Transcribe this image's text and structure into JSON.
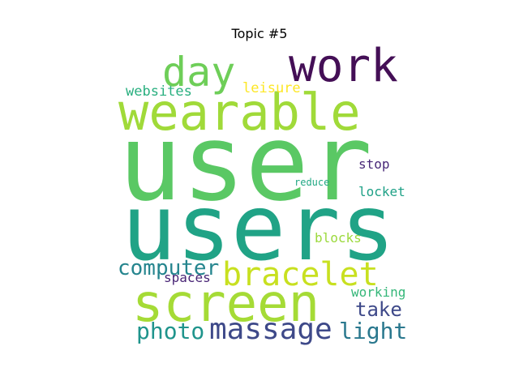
{
  "chart_data": {
    "type": "wordcloud",
    "title": "Topic #5",
    "words": [
      {
        "text": "user",
        "weight": 1.0,
        "color": "#5ac864"
      },
      {
        "text": "users",
        "weight": 0.92,
        "color": "#20a386"
      },
      {
        "text": "wearable",
        "weight": 0.6,
        "color": "#a0da39"
      },
      {
        "text": "screen",
        "weight": 0.58,
        "color": "#a5db36"
      },
      {
        "text": "work",
        "weight": 0.45,
        "color": "#440f56"
      },
      {
        "text": "day",
        "weight": 0.42,
        "color": "#6ece58"
      },
      {
        "text": "bracelet",
        "weight": 0.36,
        "color": "#c8e020"
      },
      {
        "text": "massage",
        "weight": 0.3,
        "color": "#3e4989"
      },
      {
        "text": "computer",
        "weight": 0.22,
        "color": "#25858e"
      },
      {
        "text": "photo",
        "weight": 0.22,
        "color": "#1f948c"
      },
      {
        "text": "light",
        "weight": 0.22,
        "color": "#2a788e"
      },
      {
        "text": "take",
        "weight": 0.2,
        "color": "#3e4989"
      },
      {
        "text": "websites",
        "weight": 0.12,
        "color": "#29af7f"
      },
      {
        "text": "leisure",
        "weight": 0.12,
        "color": "#fde725"
      },
      {
        "text": "stop",
        "weight": 0.12,
        "color": "#482878"
      },
      {
        "text": "locket",
        "weight": 0.12,
        "color": "#1fa187"
      },
      {
        "text": "blocks",
        "weight": 0.12,
        "color": "#9bd93c"
      },
      {
        "text": "spaces",
        "weight": 0.12,
        "color": "#482475"
      },
      {
        "text": "working",
        "weight": 0.12,
        "color": "#35b779"
      },
      {
        "text": "reduce",
        "weight": 0.09,
        "color": "#22a884"
      }
    ]
  }
}
